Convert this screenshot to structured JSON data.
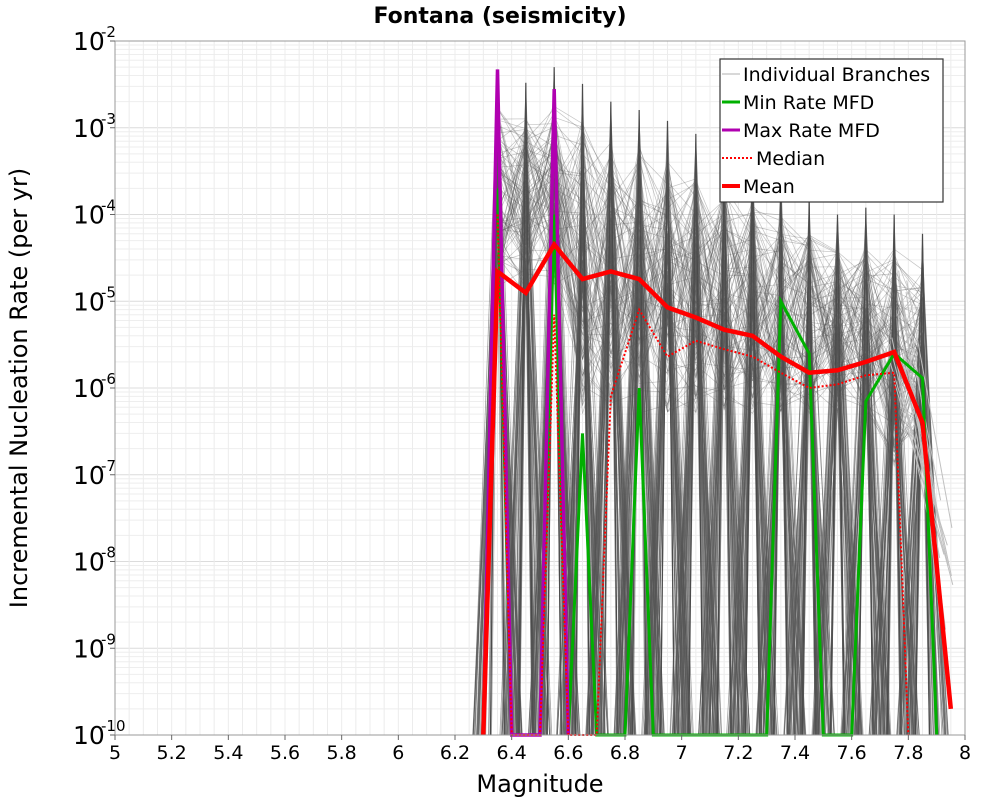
{
  "chart_data": {
    "type": "line",
    "title": "Fontana (seismicity)",
    "xlabel": "Magnitude",
    "ylabel": "Incremental Nucleation Rate (per yr)",
    "xlim": [
      5,
      8
    ],
    "ylim": [
      1e-10,
      0.01
    ],
    "yscale": "log",
    "grid": true,
    "legend_position": "top-right",
    "x_ticks": [
      "5",
      "5.2",
      "5.4",
      "5.6",
      "5.8",
      "6",
      "6.2",
      "6.4",
      "6.6",
      "6.8",
      "7",
      "7.2",
      "7.4",
      "7.6",
      "7.8",
      "8"
    ],
    "y_ticks": [
      {
        "base": "10",
        "exp": "-10"
      },
      {
        "base": "10",
        "exp": "-9"
      },
      {
        "base": "10",
        "exp": "-8"
      },
      {
        "base": "10",
        "exp": "-7"
      },
      {
        "base": "10",
        "exp": "-6"
      },
      {
        "base": "10",
        "exp": "-5"
      },
      {
        "base": "10",
        "exp": "-4"
      },
      {
        "base": "10",
        "exp": "-3"
      },
      {
        "base": "10",
        "exp": "-2"
      }
    ],
    "series": [
      {
        "name": "Individual Branches",
        "color": "#8a8a8a",
        "note": "ensemble envelope of many logic-tree branches (approximate)",
        "peaks": [
          {
            "x": 6.35,
            "y": 0.0045
          },
          {
            "x": 6.45,
            "y": 0.0033
          },
          {
            "x": 6.55,
            "y": 0.005
          },
          {
            "x": 6.65,
            "y": 0.0032
          },
          {
            "x": 6.75,
            "y": 0.002
          },
          {
            "x": 6.85,
            "y": 0.0016
          },
          {
            "x": 6.95,
            "y": 0.0012
          },
          {
            "x": 7.05,
            "y": 0.00085
          },
          {
            "x": 7.15,
            "y": 0.0006
          },
          {
            "x": 7.25,
            "y": 0.0004
          },
          {
            "x": 7.35,
            "y": 0.00025
          },
          {
            "x": 7.45,
            "y": 0.00016
          },
          {
            "x": 7.55,
            "y": 0.0001
          },
          {
            "x": 7.65,
            "y": 0.00012
          },
          {
            "x": 7.75,
            "y": 0.0001
          },
          {
            "x": 7.85,
            "y": 6e-05
          }
        ]
      },
      {
        "name": "Min Rate MFD",
        "color": "#00b000",
        "x": [
          6.35,
          6.4,
          6.5,
          6.55,
          6.6,
          6.65,
          6.7,
          6.8,
          6.85,
          6.9,
          7.3,
          7.35,
          7.45,
          7.5,
          7.6,
          7.65,
          7.75,
          7.85,
          7.9
        ],
        "y": [
          0.0002,
          1e-10,
          1e-10,
          0.0001,
          1e-10,
          3e-07,
          1e-10,
          1e-10,
          1e-06,
          1e-10,
          1e-10,
          1e-05,
          2.5e-06,
          1e-10,
          1e-10,
          7e-07,
          2.5e-06,
          1.3e-06,
          1e-10
        ]
      },
      {
        "name": "Max Rate MFD",
        "color": "#b000b0",
        "x": [
          6.3,
          6.35,
          6.4,
          6.5,
          6.55,
          6.6
        ],
        "y": [
          1e-10,
          0.0047,
          1e-10,
          1e-10,
          0.0028,
          1e-10
        ]
      },
      {
        "name": "Median",
        "color": "#ff0000",
        "dashed": true,
        "x": [
          6.35,
          6.4,
          6.5,
          6.55,
          6.6,
          6.7,
          6.75,
          6.85,
          6.95,
          7.05,
          7.15,
          7.25,
          7.35,
          7.45,
          7.55,
          7.65,
          7.75,
          7.8
        ],
        "y": [
          0.0001,
          1e-10,
          1e-10,
          7e-06,
          1e-10,
          1e-10,
          8e-07,
          8e-06,
          2.3e-06,
          3.5e-06,
          2.8e-06,
          2.3e-06,
          1.5e-06,
          1e-06,
          1.1e-06,
          1.4e-06,
          1.5e-06,
          1e-10
        ]
      },
      {
        "name": "Mean",
        "color": "#ff0000",
        "x": [
          6.3,
          6.35,
          6.45,
          6.55,
          6.65,
          6.75,
          6.85,
          6.95,
          7.05,
          7.15,
          7.25,
          7.35,
          7.45,
          7.55,
          7.65,
          7.75,
          7.85,
          7.95
        ],
        "y": [
          1e-10,
          2.2e-05,
          1.25e-05,
          4.5e-05,
          1.8e-05,
          2.2e-05,
          1.8e-05,
          8.5e-06,
          6.5e-06,
          4.7e-06,
          4e-06,
          2.3e-06,
          1.5e-06,
          1.6e-06,
          2e-06,
          2.6e-06,
          4e-07,
          2e-10
        ]
      }
    ]
  },
  "legend": {
    "items": [
      {
        "label": "Individual Branches",
        "color": "#b0b0b0",
        "style": "thin"
      },
      {
        "label": "Min Rate MFD",
        "color": "#00b000",
        "style": "solid"
      },
      {
        "label": "Max Rate MFD",
        "color": "#b000b0",
        "style": "solid"
      },
      {
        "label": "Median",
        "color": "#ff0000",
        "style": "dotted"
      },
      {
        "label": "Mean",
        "color": "#ff0000",
        "style": "thick"
      }
    ]
  }
}
